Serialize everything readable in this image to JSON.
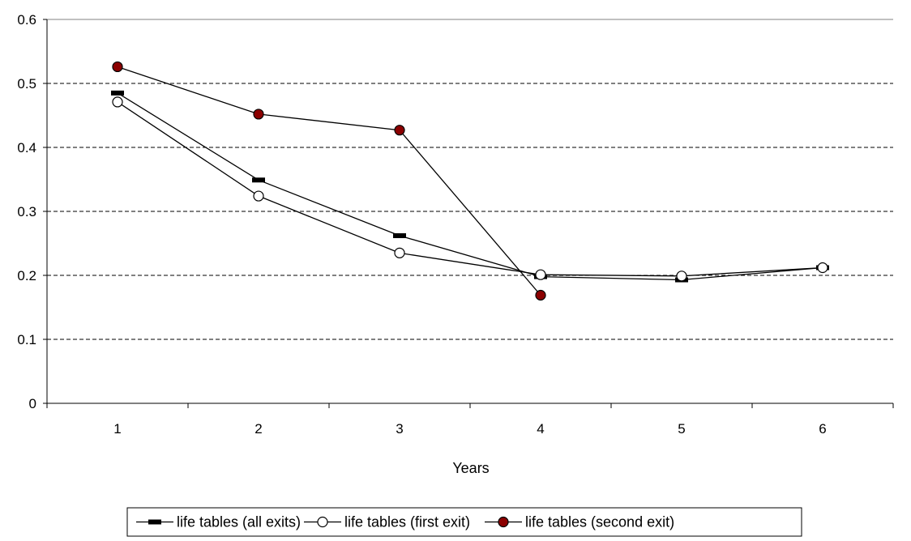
{
  "chart_data": {
    "type": "line",
    "title": "",
    "xlabel": "Years",
    "ylabel": "",
    "categories": [
      "1",
      "2",
      "3",
      "4",
      "5",
      "6"
    ],
    "ylim": [
      0,
      0.6
    ],
    "yticks": [
      "0",
      "0.1",
      "0.2",
      "0.3",
      "0.4",
      "0.5",
      "0.6"
    ],
    "grid": "horizontal dashed",
    "legend_position": "bottom",
    "series": [
      {
        "name": "life tables (all exits)",
        "marker": "dash",
        "color": "#000000",
        "values": [
          0.485,
          0.349,
          0.262,
          0.198,
          0.193,
          0.212
        ]
      },
      {
        "name": "life tables (first exit)",
        "marker": "circle-open",
        "color": "#000000",
        "values": [
          0.471,
          0.324,
          0.235,
          0.201,
          0.199,
          0.212
        ]
      },
      {
        "name": "life tables (second exit)",
        "marker": "circle-filled",
        "color": "#000000",
        "fill": "#8b0000",
        "values": [
          0.526,
          0.452,
          0.427,
          0.169,
          null,
          null
        ]
      }
    ]
  }
}
